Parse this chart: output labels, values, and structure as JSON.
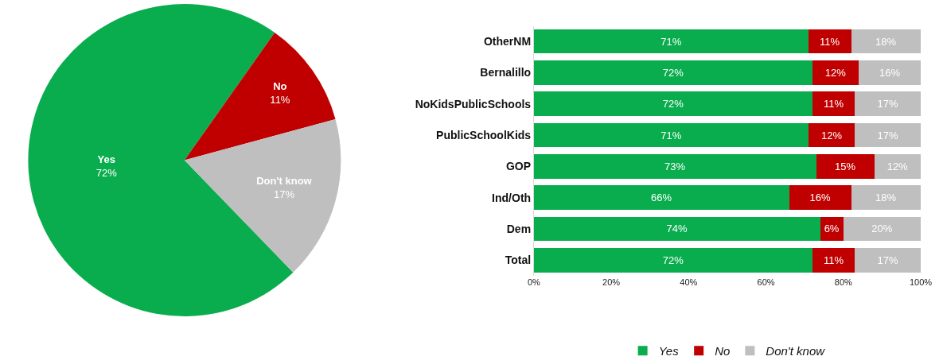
{
  "chart_data": [
    {
      "type": "pie",
      "categories": [
        "Yes",
        "No",
        "Don't know"
      ],
      "values": [
        72,
        11,
        17
      ],
      "value_labels": [
        "72%",
        "11%",
        "17%"
      ],
      "colors": [
        "#0aad4e",
        "#c00000",
        "#bfbfbf"
      ],
      "legend": false
    },
    {
      "type": "bar",
      "orientation": "horizontal",
      "stacked": true,
      "categories": [
        "OtherNM",
        "Bernalillo",
        "NoKidsPublicSchools",
        "PublicSchoolKids",
        "GOP",
        "Ind/Oth",
        "Dem",
        "Total"
      ],
      "series": [
        {
          "name": "Yes",
          "color": "#0aad4e",
          "values": [
            71,
            72,
            72,
            71,
            73,
            66,
            74,
            72
          ],
          "value_labels": [
            "71%",
            "72%",
            "72%",
            "71%",
            "73%",
            "66%",
            "74%",
            "72%"
          ]
        },
        {
          "name": "No",
          "color": "#c00000",
          "values": [
            11,
            12,
            11,
            12,
            15,
            16,
            6,
            11
          ],
          "value_labels": [
            "11%",
            "12%",
            "11%",
            "12%",
            "15%",
            "16%",
            "6%",
            "11%"
          ]
        },
        {
          "name": "Don't know",
          "color": "#bfbfbf",
          "values": [
            18,
            16,
            17,
            17,
            12,
            18,
            20,
            17
          ],
          "value_labels": [
            "18%",
            "16%",
            "17%",
            "17%",
            "12%",
            "18%",
            "20%",
            "17%"
          ]
        }
      ],
      "xlim": [
        0,
        100
      ],
      "xticks": [
        {
          "value": 0,
          "label": "0%"
        },
        {
          "value": 20,
          "label": "20%"
        },
        {
          "value": 40,
          "label": "40%"
        },
        {
          "value": 60,
          "label": "60%"
        },
        {
          "value": 80,
          "label": "80%"
        },
        {
          "value": 100,
          "label": "100%"
        }
      ],
      "legend": "bottom"
    }
  ]
}
